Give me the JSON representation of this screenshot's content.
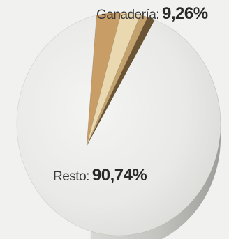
{
  "chart_data": {
    "type": "pie",
    "title": "",
    "series": [
      {
        "name": "Ganadería",
        "value": 9.26,
        "value_label": "9,26%",
        "color": "#c9a06a"
      },
      {
        "name": "Resto",
        "value": 90.74,
        "value_label": "90,74%",
        "color": "#e9e9e7"
      }
    ],
    "sub_slices_of_ganaderia": [
      {
        "value": 3.9,
        "color": "#c99d66"
      },
      {
        "value": 3.0,
        "color": "#ead9b0"
      },
      {
        "value": 1.2,
        "color": "#c4a26e"
      },
      {
        "value": 1.16,
        "color": "#6b5434"
      }
    ],
    "legend": "none",
    "style": "3d-pie"
  },
  "labels": {
    "ganaderia_name": "Ganadería:",
    "ganaderia_value": "9,26%",
    "resto_name": "Resto:",
    "resto_value": "90,74%"
  }
}
